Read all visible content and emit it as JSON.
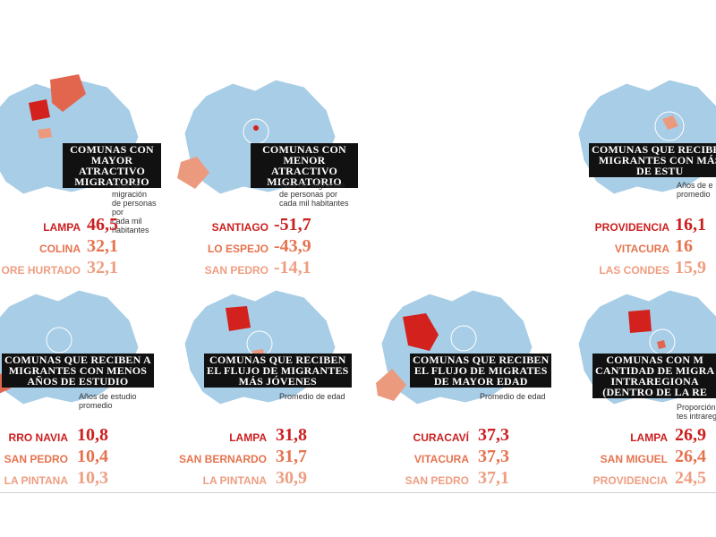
{
  "colors": {
    "map_base": "#a8cde6",
    "map_stroke": "#ffffff",
    "highlight_1": "#d3211d",
    "highlight_2": "#e2664e",
    "highlight_3": "#ec9a7e",
    "rank_1": "#cc1f1f",
    "rank_2": "#e5734f",
    "rank_3": "#ee9e82"
  },
  "panels": [
    {
      "title": "COMUNAS CON\nMAYOR ATRACTIVO\nMIGRATORIO",
      "subtitle": "Tasa de migración\nde personas por\ncada mil habitantes",
      "rows": [
        {
          "name": "LAMPA",
          "value": "46,5"
        },
        {
          "name": "COLINA",
          "value": "32,1"
        },
        {
          "name": "ORE HURTADO",
          "value": "32,1"
        }
      ]
    },
    {
      "title": "COMUNAS CON\nMENOR ATRACTIVO\nMIGRATORIO",
      "subtitle": "Tasa de migración\nde personas por\ncada mil habitantes",
      "rows": [
        {
          "name": "SANTIAGO",
          "value": "-51,7"
        },
        {
          "name": "LO ESPEJO",
          "value": "-43,9"
        },
        {
          "name": "SAN PEDRO",
          "value": "-14,1"
        }
      ]
    },
    {
      "title": "COMUNAS QUE RECIBEN\nMIGRANTES CON MÁS\nDE ESTU",
      "subtitle": "Años de e\npromedio",
      "rows": [
        {
          "name": "PROVIDENCIA",
          "value": "16,1"
        },
        {
          "name": "VITACURA",
          "value": "16"
        },
        {
          "name": "LAS CONDES",
          "value": "15,9"
        }
      ]
    },
    {
      "title": "COMUNAS QUE RECIBEN A\nMIGRANTES CON MENOS\nAÑOS DE ESTUDIO",
      "subtitle": "Años de estudio\npromedio",
      "rows": [
        {
          "name": "RRO NAVIA",
          "value": "10,8"
        },
        {
          "name": "SAN PEDRO",
          "value": "10,4"
        },
        {
          "name": "LA PINTANA",
          "value": "10,3"
        }
      ]
    },
    {
      "title": "COMUNAS QUE RECIBEN\nEL FLUJO DE MIGRANTES\nMÁS JÓVENES",
      "subtitle": "Promedio de edad",
      "rows": [
        {
          "name": "LAMPA",
          "value": "31,8"
        },
        {
          "name": "SAN BERNARDO",
          "value": "31,7"
        },
        {
          "name": "LA PINTANA",
          "value": "30,9"
        }
      ]
    },
    {
      "title": "COMUNAS QUE RECIBEN\nEL FLUJO DE MIGRATES\nDE MAYOR EDAD",
      "subtitle": "Promedio de edad",
      "rows": [
        {
          "name": "CURACAVÍ",
          "value": "37,3"
        },
        {
          "name": "VITACURA",
          "value": "37,3"
        },
        {
          "name": "SAN PEDRO",
          "value": "37,1"
        }
      ]
    },
    {
      "title": "COMUNAS CON M\nCANTIDAD DE MIGRA\nINTRAREGIONA\n(DENTRO DE LA RE",
      "subtitle": "Proporción\ntes intrareg",
      "rows": [
        {
          "name": "LAMPA",
          "value": "26,9"
        },
        {
          "name": "SAN MIGUEL",
          "value": "26,4"
        },
        {
          "name": "PROVIDENCIA",
          "value": "24,5"
        }
      ]
    }
  ]
}
